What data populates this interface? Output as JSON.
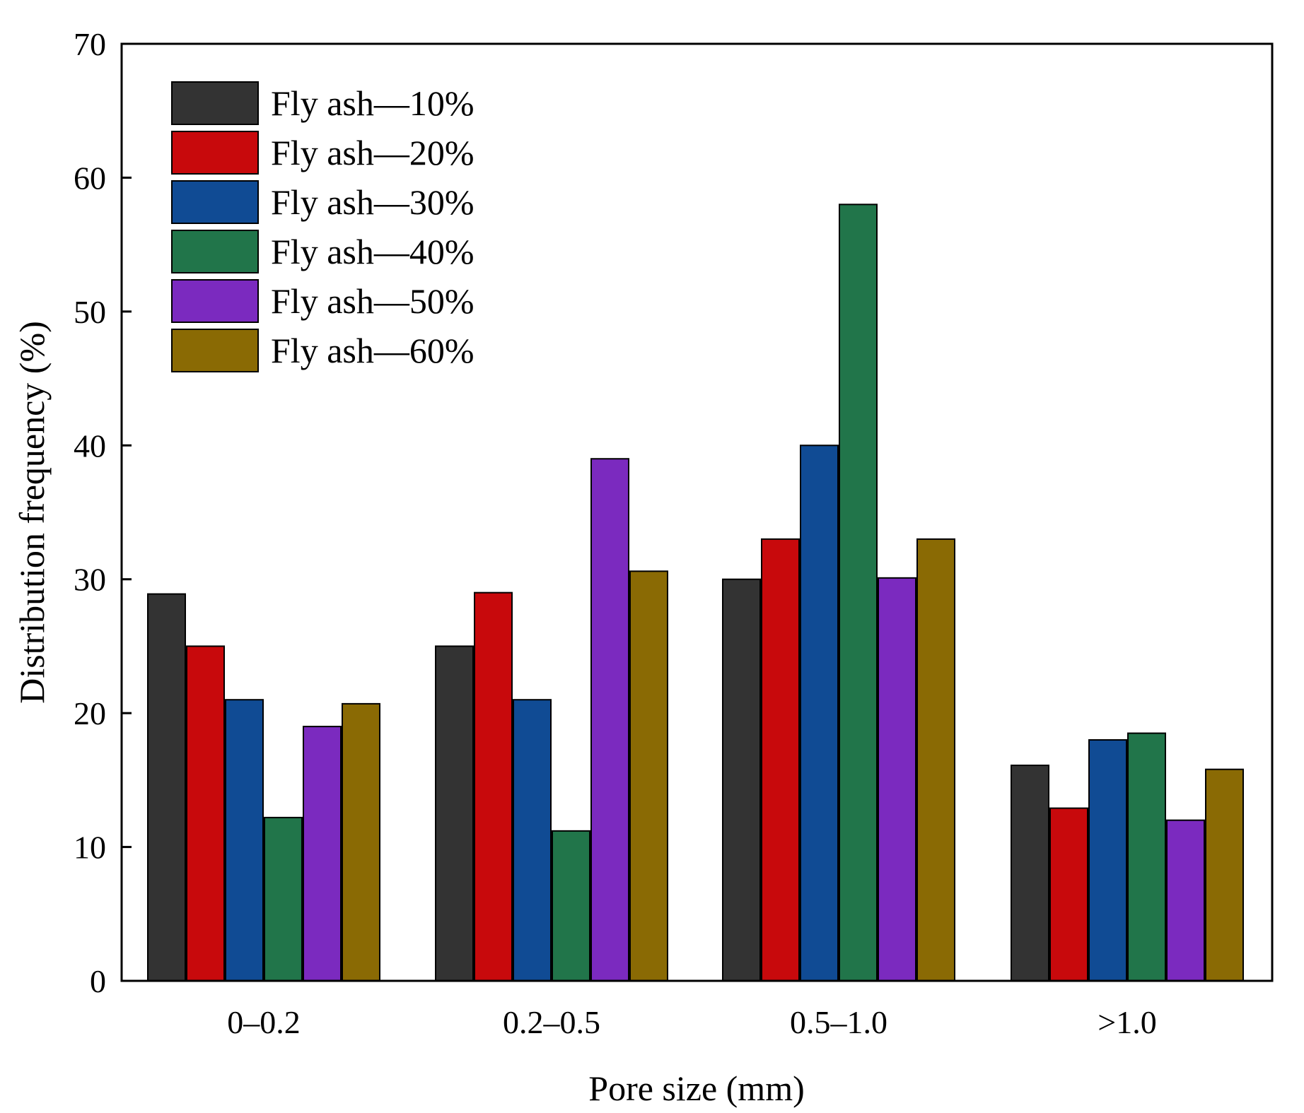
{
  "chart_data": {
    "type": "bar",
    "title": "",
    "xlabel": "Pore size (mm)",
    "ylabel": "Distribution frequency (%)",
    "ylim": [
      0,
      70
    ],
    "yticks": [
      0,
      10,
      20,
      30,
      40,
      50,
      60,
      70
    ],
    "grid": false,
    "legend_position": "top-left",
    "categories": [
      "0–0.2",
      "0.2–0.5",
      "0.5–1.0",
      ">1.0"
    ],
    "series": [
      {
        "name": "Fly ash—10%",
        "color": "#333333",
        "values": [
          28.9,
          25.0,
          30.0,
          16.1
        ]
      },
      {
        "name": "Fly ash—20%",
        "color": "#c8090c",
        "values": [
          25.0,
          29.0,
          33.0,
          12.9
        ]
      },
      {
        "name": "Fly ash—30%",
        "color": "#104b94",
        "values": [
          21.0,
          21.0,
          40.0,
          18.0
        ]
      },
      {
        "name": "Fly ash—40%",
        "color": "#21754a",
        "values": [
          12.2,
          11.2,
          58.0,
          18.5
        ]
      },
      {
        "name": "Fly ash—50%",
        "color": "#7b2abf",
        "values": [
          19.0,
          39.0,
          30.1,
          12.0
        ]
      },
      {
        "name": "Fly ash—60%",
        "color": "#8a6a04",
        "values": [
          20.7,
          30.6,
          33.0,
          15.8
        ]
      }
    ]
  }
}
